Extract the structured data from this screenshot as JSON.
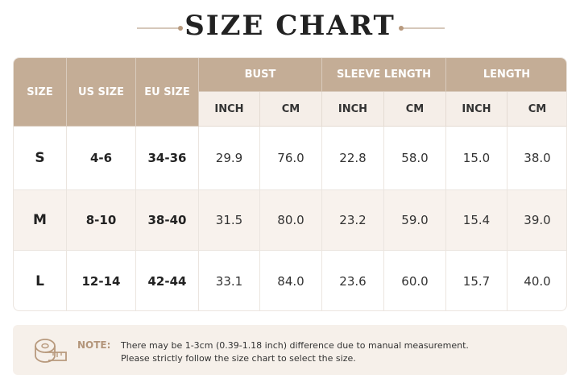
{
  "title": "SIZE CHART",
  "table": {
    "headers": [
      "SIZE",
      "US SIZE",
      "EU SIZE"
    ],
    "groups": [
      "BUST",
      "SLEEVE LENGTH",
      "LENGTH"
    ],
    "subheaders": [
      "INCH",
      "CM",
      "INCH",
      "CM",
      "INCH",
      "CM"
    ],
    "rows": [
      [
        "S",
        "4-6",
        "34-36",
        "29.9",
        "76.0",
        "22.8",
        "58.0",
        "15.0",
        "38.0"
      ],
      [
        "M",
        "8-10",
        "38-40",
        "31.5",
        "80.0",
        "23.2",
        "59.0",
        "15.4",
        "39.0"
      ],
      [
        "L",
        "12-14",
        "42-44",
        "33.1",
        "84.0",
        "23.6",
        "60.0",
        "15.7",
        "40.0"
      ]
    ]
  },
  "note": {
    "label": "NOTE:",
    "lines": [
      "There may be 1-3cm (0.39-1.18 inch) difference due to manual measurement.",
      "Please strictly follow the size chart to select the size."
    ]
  }
}
